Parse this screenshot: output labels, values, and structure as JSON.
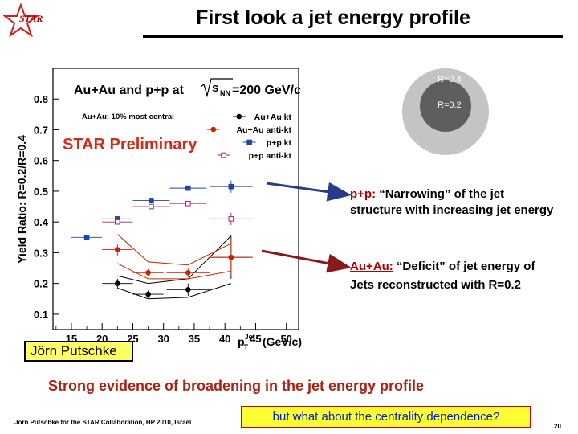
{
  "slide": {
    "title": "First look a jet energy profile",
    "logo_text": "STAR",
    "author_box": "Jörn Putschke",
    "annotation_pp": {
      "lead": "p+p:",
      "line1": " “Narrowing” of the jet",
      "line2": "structure with increasing jet energy"
    },
    "annotation_auau": {
      "lead": "Au+Au:",
      "line1": " “Deficit” of jet energy of",
      "line2": "Jets reconstructed with R=0.2"
    },
    "conclusion": "Strong evidence of broadening in the jet energy profile",
    "footer": "Jörn Putschke for the STAR Collaboration, HP 2010, Israel",
    "question": "but what about the centrality dependence?",
    "page_number": "20",
    "circle_outer_label": "R=0.4",
    "circle_inner_label": "R=0.2"
  },
  "chart_data": {
    "type": "scatter",
    "title": "Au+Au and p+p at √s_NN=200 GeV/c",
    "title_prefix": "Au+Au and p+p at",
    "title_sqrt": "s",
    "title_sub": "NN",
    "title_suffix": "=200 GeV/c",
    "subtitle": "Au+Au: 10% most central",
    "watermark": "STAR Preliminary",
    "ylabel": "Yield Ratio: R=0.2/R=0.4",
    "xlabel": "p_T^Jet (GeV/c)",
    "xlabel_main": "p",
    "xlabel_sub": "T",
    "xlabel_sup": "Jet",
    "xlabel_unit": " (GeV/c)",
    "xlim": [
      12,
      52
    ],
    "ylim": [
      0.05,
      0.9
    ],
    "xticks": [
      15,
      20,
      25,
      30,
      35,
      40,
      45,
      50
    ],
    "xtick_labels": [
      "15",
      "20",
      "25",
      "30",
      "35",
      "40",
      "45",
      "50"
    ],
    "yticks": [
      0.1,
      0.2,
      0.3,
      0.4,
      0.5,
      0.6,
      0.7,
      0.8
    ],
    "ytick_labels": [
      "0.1",
      "0.2",
      "0.3",
      "0.4",
      "0.5",
      "0.6",
      "0.7",
      "0.8"
    ],
    "legend_position": "top-right",
    "series": [
      {
        "name": "Au+Au kt",
        "color": "#000000",
        "marker": "circle",
        "filled": true,
        "connected": true,
        "x": [
          22.5,
          27.5,
          34,
          41
        ],
        "y": [
          0.2,
          0.165,
          0.18,
          0.285
        ],
        "xerr": [
          2.5,
          2.5,
          3.5,
          3.5
        ],
        "yerr": [
          0.015,
          0.012,
          0.02,
          0.07
        ],
        "sys_low": [
          0.185,
          0.15,
          0.155,
          0.2
        ],
        "sys_high": [
          0.225,
          0.2,
          0.215,
          0.355
        ]
      },
      {
        "name": "Au+Au anti-kt",
        "color": "#cc2200",
        "marker": "circle",
        "filled": true,
        "connected": true,
        "x": [
          22.5,
          27.5,
          34,
          41
        ],
        "y": [
          0.31,
          0.235,
          0.235,
          0.285
        ],
        "xerr": [
          2.5,
          2.5,
          3.5,
          3.5
        ],
        "yerr": [
          0.02,
          0.012,
          0.015,
          0.06
        ],
        "sys_low": [
          0.265,
          0.215,
          0.215,
          0.24
        ],
        "sys_high": [
          0.36,
          0.27,
          0.26,
          0.33
        ]
      },
      {
        "name": "p+p kt",
        "color": "#2244aa",
        "marker": "square",
        "filled": true,
        "connected": false,
        "x": [
          17.5,
          22.5,
          28,
          34,
          41
        ],
        "y": [
          0.35,
          0.41,
          0.47,
          0.51,
          0.515
        ],
        "xerr": [
          2.5,
          2.5,
          3,
          3,
          3.5
        ],
        "yerr": [
          0.005,
          0.005,
          0.006,
          0.008,
          0.02
        ]
      },
      {
        "name": "p+p anti-kt",
        "color": "#aa2266",
        "marker": "square",
        "filled": false,
        "connected": false,
        "x": [
          22.5,
          28,
          34,
          41
        ],
        "y": [
          0.4,
          0.45,
          0.46,
          0.41
        ],
        "xerr": [
          2.5,
          3,
          3,
          3.5
        ],
        "yerr": [
          0.005,
          0.006,
          0.008,
          0.02
        ]
      }
    ]
  }
}
